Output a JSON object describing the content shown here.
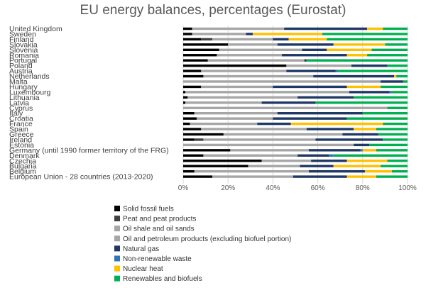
{
  "chart_data": {
    "type": "bar",
    "orientation": "horizontal",
    "stacked": "percent",
    "title": "EU energy balances, percentages (Eurostat)",
    "xlim": [
      0,
      100
    ],
    "x_ticks": [
      "0%",
      "20%",
      "40%",
      "60%",
      "80%",
      "100%"
    ],
    "categories": [
      "United Kingdom",
      "Sweden",
      "Finland",
      "Slovakia",
      "Slovenia",
      "Romania",
      "Portugal",
      "Poland",
      "Austria",
      "Netherlands",
      "Malta",
      "Hungary",
      "Luxembourg",
      "Lithuania",
      "Latvia",
      "Cyprus",
      "Italy",
      "Croatia",
      "France",
      "Spain",
      "Greece",
      "Ireland",
      "Estonia",
      "Germany (until 1990 former territory of the FRG)",
      "Denmark",
      "Czechia",
      "Bulgaria",
      "Belgium",
      "European Union - 28 countries (2013-2020)"
    ],
    "series": [
      {
        "name": "Solid fossil fuels",
        "color": "#000000",
        "values": [
          4,
          4,
          8,
          20,
          16,
          15,
          11,
          46,
          8,
          9,
          0,
          8,
          1,
          2,
          1,
          0,
          5,
          6,
          3,
          8,
          18,
          5,
          0,
          21,
          9,
          35,
          29,
          5,
          13
        ]
      },
      {
        "name": "Peat and peat products",
        "color": "#404040",
        "values": [
          0,
          0,
          5,
          0,
          0,
          0,
          0,
          0,
          0,
          0,
          0,
          0,
          0,
          0,
          0,
          0,
          0,
          0,
          0,
          0,
          0,
          4,
          0,
          0,
          0,
          0,
          0,
          0,
          0
        ]
      },
      {
        "name": "Oil shale and oil sands",
        "color": "#a6a6a6",
        "values": [
          0,
          0,
          0,
          0,
          0,
          0,
          0,
          0,
          0,
          0,
          0,
          0,
          0,
          0,
          0,
          0,
          0,
          0,
          0,
          0,
          0,
          0,
          76,
          0,
          0,
          0,
          0,
          0,
          0
        ]
      },
      {
        "name": "Oil and petroleum products (excluding biofuel portion)",
        "color": "#a6a6a6",
        "values": [
          41,
          24,
          27,
          22,
          37,
          29,
          43,
          29,
          38,
          49,
          88,
          32,
          73,
          49,
          34,
          91,
          37,
          34,
          30,
          47,
          53,
          50,
          0,
          35,
          42,
          22,
          23,
          51,
          36
        ]
      },
      {
        "name": "Natural gas",
        "color": "#1f3864",
        "values": [
          37,
          3,
          7,
          25,
          11,
          29,
          1,
          16,
          22,
          36,
          10,
          33,
          18,
          25,
          24,
          0,
          38,
          33,
          15,
          21,
          16,
          30,
          7,
          23,
          14,
          16,
          15,
          25,
          24
        ]
      },
      {
        "name": "Non-renewable waste",
        "color": "#2e75b6",
        "values": [
          0,
          0,
          0,
          0,
          0,
          0,
          0,
          0,
          1,
          0,
          0,
          0,
          1,
          0,
          0,
          0,
          0,
          0,
          0,
          0,
          0,
          0,
          0,
          1,
          2,
          0,
          0,
          0,
          0
        ]
      },
      {
        "name": "Nuclear heat",
        "color": "#ffc000",
        "values": [
          7,
          31,
          17,
          23,
          20,
          9,
          0,
          0,
          0,
          1,
          0,
          15,
          0,
          0,
          0,
          0,
          0,
          0,
          41,
          10,
          0,
          0,
          0,
          6,
          0,
          18,
          21,
          12,
          13
        ]
      },
      {
        "name": "Renewables and biofuels",
        "color": "#00b050",
        "values": [
          11,
          38,
          36,
          10,
          16,
          18,
          45,
          9,
          31,
          5,
          2,
          12,
          7,
          24,
          41,
          9,
          20,
          27,
          11,
          14,
          13,
          11,
          17,
          14,
          33,
          9,
          12,
          7,
          14
        ]
      }
    ],
    "legend_position": "bottom-left"
  }
}
